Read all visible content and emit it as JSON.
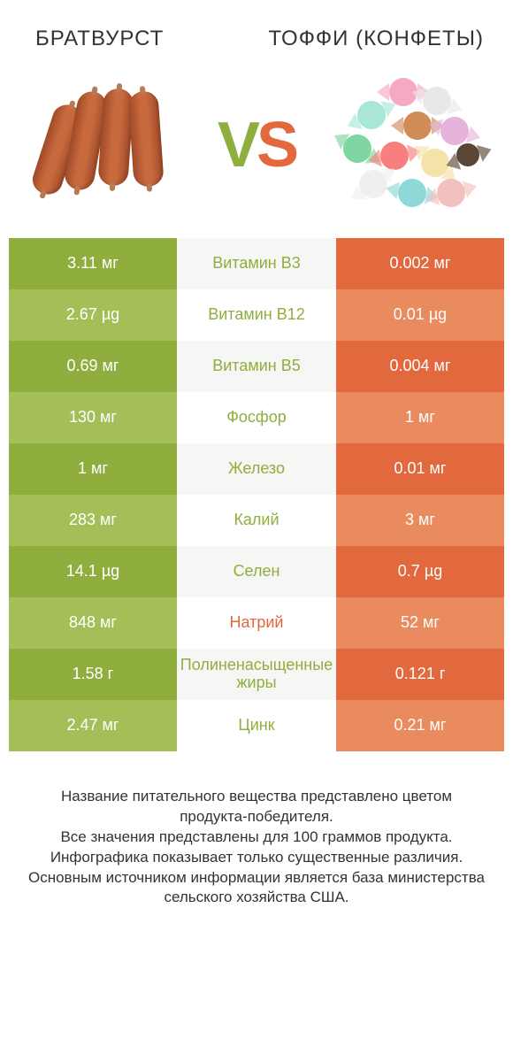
{
  "colors": {
    "green_dark": "#8fae3e",
    "green_light": "#a4bf57",
    "orange_dark": "#e2683d",
    "orange_light": "#e98a5f",
    "mid_bg_a": "#f6f6f4",
    "mid_bg_b": "#ffffff"
  },
  "header": {
    "left_title": "БРАТВУРСТ",
    "right_title": "ТОФФИ (КОНФЕТЫ)"
  },
  "vs": {
    "v": "V",
    "s": "S"
  },
  "rows": [
    {
      "left": "3.11 мг",
      "label": "Витамин B3",
      "right": "0.002 мг",
      "label_color": "green"
    },
    {
      "left": "2.67 µg",
      "label": "Витамин B12",
      "right": "0.01 µg",
      "label_color": "green"
    },
    {
      "left": "0.69 мг",
      "label": "Витамин B5",
      "right": "0.004 мг",
      "label_color": "green"
    },
    {
      "left": "130 мг",
      "label": "Фосфор",
      "right": "1 мг",
      "label_color": "green"
    },
    {
      "left": "1 мг",
      "label": "Железо",
      "right": "0.01 мг",
      "label_color": "green"
    },
    {
      "left": "283 мг",
      "label": "Калий",
      "right": "3 мг",
      "label_color": "green"
    },
    {
      "left": "14.1 µg",
      "label": "Селен",
      "right": "0.7 µg",
      "label_color": "green"
    },
    {
      "left": "848 мг",
      "label": "Натрий",
      "right": "52 мг",
      "label_color": "orange"
    },
    {
      "left": "1.58 г",
      "label": "Полиненасыщенные жиры",
      "right": "0.121 г",
      "label_color": "green"
    },
    {
      "left": "2.47 мг",
      "label": "Цинк",
      "right": "0.21 мг",
      "label_color": "green"
    }
  ],
  "footer": {
    "line1": "Название питательного вещества представлено цветом продукта-победителя.",
    "line2": "Все значения представлены для 100 граммов продукта.",
    "line3": "Инфографика показывает только существенные различия.",
    "line4": "Основным источником информации является база министерства сельского хозяйства США."
  }
}
